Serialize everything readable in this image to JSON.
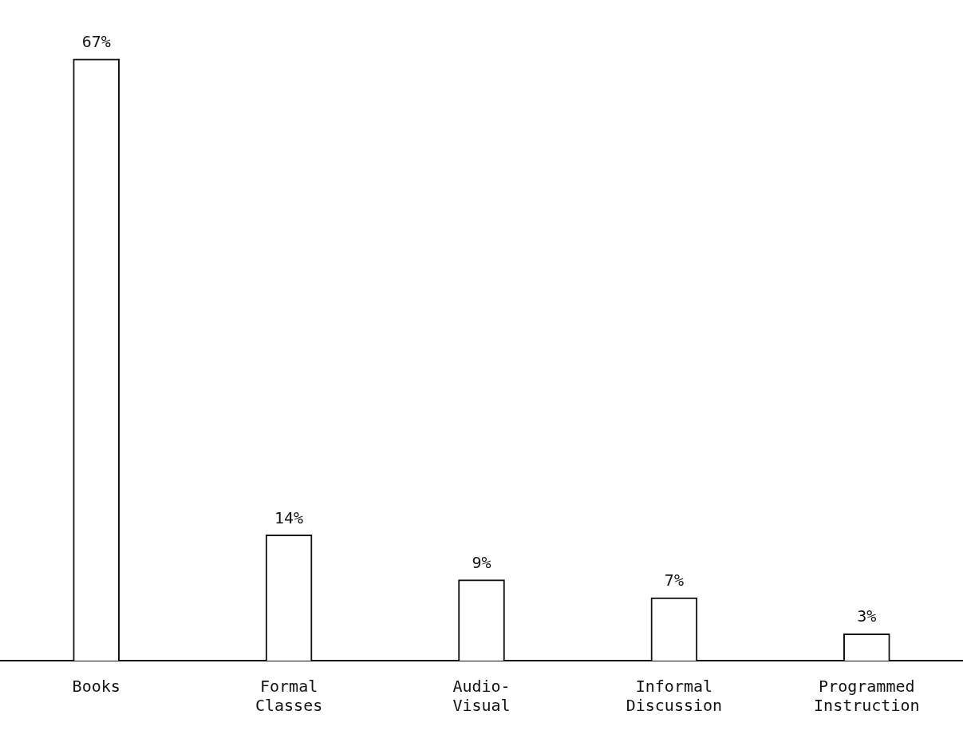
{
  "chart_data": {
    "type": "bar",
    "categories": [
      "Books",
      "Formal Classes",
      "Audio-Visual",
      "Informal Discussion",
      "Programmed Instruction"
    ],
    "values": [
      67,
      14,
      9,
      7,
      3
    ],
    "value_labels": [
      "67%",
      "14%",
      "9%",
      "7%",
      "3%"
    ],
    "color": "#ffffff",
    "grid": false,
    "legend": false
  }
}
